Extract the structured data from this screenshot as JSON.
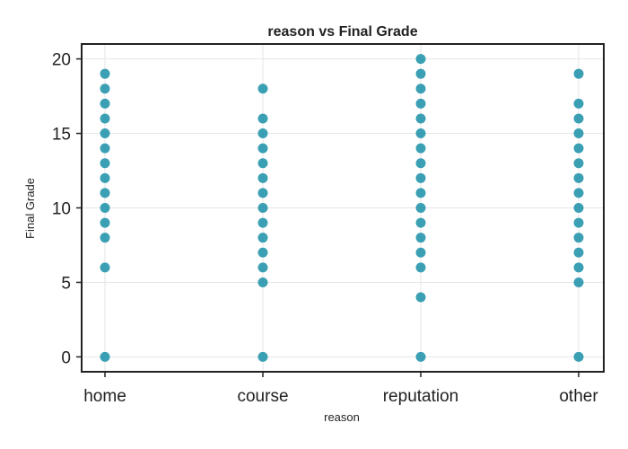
{
  "chart_data": {
    "type": "scatter",
    "title": "reason vs Final Grade",
    "xlabel": "reason",
    "ylabel": "Final Grade",
    "categories": [
      "home",
      "course",
      "reputation",
      "other"
    ],
    "ylim": [
      -1,
      21
    ],
    "yticks": [
      0,
      5,
      10,
      15,
      20
    ],
    "grid": true,
    "point_color": "#1a8fa8",
    "points": [
      {
        "category": "home",
        "y": [
          0,
          6,
          8,
          9,
          10,
          11,
          12,
          13,
          14,
          15,
          16,
          17,
          18,
          19
        ]
      },
      {
        "category": "course",
        "y": [
          0,
          5,
          6,
          7,
          8,
          9,
          10,
          11,
          12,
          13,
          14,
          15,
          16,
          18
        ]
      },
      {
        "category": "reputation",
        "y": [
          0,
          4,
          6,
          7,
          8,
          9,
          10,
          11,
          12,
          13,
          14,
          15,
          16,
          17,
          18,
          19,
          20
        ]
      },
      {
        "category": "other",
        "y": [
          0,
          5,
          6,
          7,
          8,
          9,
          10,
          11,
          12,
          13,
          14,
          15,
          16,
          17,
          19
        ]
      }
    ]
  }
}
